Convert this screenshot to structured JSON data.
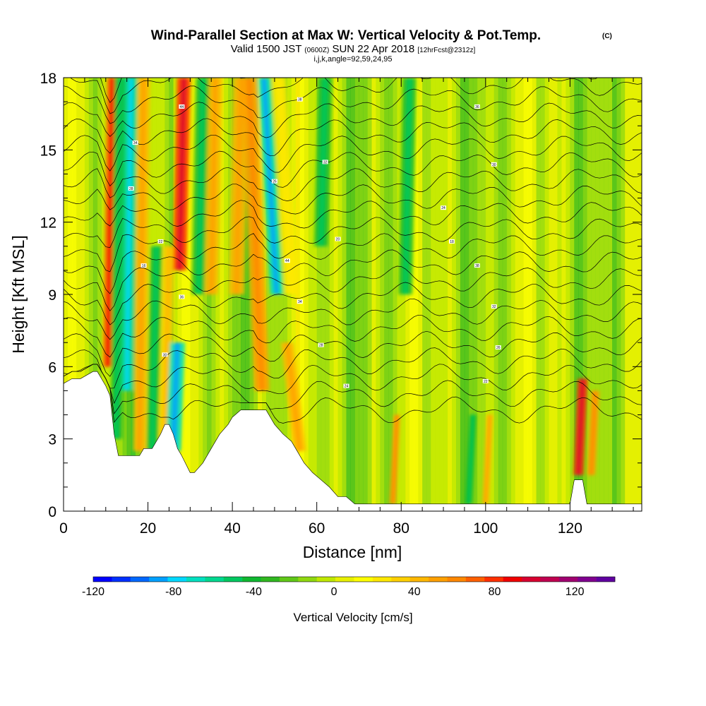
{
  "chart_data": {
    "type": "heatmap",
    "title": "Wind-Parallel Section at Max W: Vertical Velocity & Pot.Temp.",
    "title_units": "(C)",
    "subtitle_prefix": "Valid 1500 JST",
    "subtitle_z": "(0600Z)",
    "subtitle_date": "SUN 22 Apr 2018",
    "subtitle_fcst": "[12hrFcst@2312z]",
    "subtitle_line3": "i,j,k,angle=92,59,24,95",
    "xlabel": "Distance [nm]",
    "ylabel": "Height [Kft MSL]",
    "xlim": [
      0,
      137
    ],
    "ylim": [
      0,
      18
    ],
    "x_ticks": [
      0,
      20,
      40,
      60,
      80,
      100,
      120
    ],
    "x_tick_labels": [
      "0",
      "20",
      "40",
      "60",
      "80",
      "100",
      "120"
    ],
    "y_ticks": [
      0,
      3,
      6,
      9,
      12,
      15,
      18
    ],
    "y_tick_labels": [
      "0",
      "3",
      "6",
      "9",
      "12",
      "15",
      "18"
    ],
    "colorbar": {
      "label": "Vertical Velocity [cm/s]",
      "min": -120,
      "max": 140,
      "step": 10,
      "tick_values": [
        -120,
        -80,
        -40,
        0,
        40,
        80,
        120
      ],
      "tick_labels": [
        "-120",
        "-80",
        "-40",
        "0",
        "40",
        "80",
        "120"
      ],
      "colors": [
        "#0000ff",
        "#0030ff",
        "#0068ff",
        "#00a0ff",
        "#00d8ff",
        "#00e0c0",
        "#00d890",
        "#00c860",
        "#10b830",
        "#30b820",
        "#60c818",
        "#90d810",
        "#c0e800",
        "#e8f000",
        "#ffff00",
        "#ffe800",
        "#ffd000",
        "#ffb800",
        "#ffa000",
        "#ff8800",
        "#ff6000",
        "#ff3000",
        "#f00000",
        "#d80030",
        "#c00050",
        "#a00070",
        "#800090",
        "#6000a0"
      ]
    },
    "terrain": {
      "x": [
        0,
        2,
        4,
        7,
        8,
        10,
        11,
        12,
        13,
        14,
        16,
        18,
        19,
        21,
        22,
        23,
        24,
        25,
        26,
        27,
        28,
        30,
        31,
        33,
        35,
        37,
        39,
        40,
        42,
        44,
        45,
        47,
        48,
        50,
        52,
        54,
        55,
        57,
        59,
        61,
        63,
        65,
        67,
        69,
        72,
        80,
        90,
        100,
        110,
        119,
        120,
        121,
        122,
        123,
        124,
        125,
        137
      ],
      "height": [
        5.3,
        5.5,
        5.5,
        5.8,
        5.8,
        5.2,
        4.8,
        3.2,
        2.3,
        2.3,
        2.3,
        2.3,
        2.6,
        2.6,
        2.9,
        3.2,
        3.6,
        3.6,
        3.2,
        2.6,
        2.3,
        1.6,
        1.6,
        2.0,
        2.6,
        3.2,
        3.6,
        3.9,
        4.2,
        4.2,
        4.2,
        4.2,
        4.2,
        3.6,
        3.2,
        2.9,
        2.6,
        2.0,
        1.6,
        1.3,
        1.0,
        0.6,
        0.6,
        0.3,
        0.3,
        0.3,
        0.3,
        0.3,
        0.3,
        0.3,
        0.3,
        1.3,
        1.3,
        1.3,
        0.3,
        0.3,
        0.3
      ]
    },
    "vertical_velocity_cells": {
      "background_value": 0,
      "features": [
        {
          "x": 10.5,
          "z_from": 6,
          "z_to": 18,
          "value": 80,
          "width": 1.2
        },
        {
          "x": 12.5,
          "z_from": 3,
          "z_to": 18,
          "value": -40,
          "width": 1.4
        },
        {
          "x": 15,
          "z_from": 5,
          "z_to": 18,
          "value": -60,
          "width": 1.5
        },
        {
          "x": 18,
          "z_from": 2.5,
          "z_to": 18,
          "value": 50,
          "width": 1.5
        },
        {
          "x": 21,
          "z_from": 2.5,
          "z_to": 11,
          "value": -40,
          "width": 1.4
        },
        {
          "x": 24,
          "z_from": 3,
          "z_to": 11,
          "value": 40,
          "width": 1.4
        },
        {
          "x": 27.5,
          "z_from": 10,
          "z_to": 18,
          "value": 90,
          "width": 1.6
        },
        {
          "x": 26,
          "z_from": 2.5,
          "z_to": 7,
          "value": -70,
          "width": 1.8
        },
        {
          "x": 32,
          "z_from": 9,
          "z_to": 18,
          "value": -40,
          "width": 1.6
        },
        {
          "x": 35,
          "z_from": 9,
          "z_to": 18,
          "value": 50,
          "width": 1.6
        },
        {
          "x": 41,
          "z_from": 9,
          "z_to": 18,
          "value": 50,
          "width": 1.8
        },
        {
          "x": 47,
          "z_from": 5,
          "z_to": 18,
          "value": 60,
          "width": 1.8
        },
        {
          "x": 50.5,
          "z_from": 9,
          "z_to": 18,
          "value": -70,
          "width": 1.5
        },
        {
          "x": 54,
          "z_from": 9,
          "z_to": 18,
          "value": 30,
          "width": 1.6
        },
        {
          "x": 56,
          "z_from": 2.5,
          "z_to": 7,
          "value": 50,
          "width": 1.5
        },
        {
          "x": 61,
          "z_from": 11,
          "z_to": 18,
          "value": -40,
          "width": 1.6
        },
        {
          "x": 78,
          "z_from": 0.3,
          "z_to": 4,
          "value": 60,
          "width": 0.8
        },
        {
          "x": 81,
          "z_from": 9,
          "z_to": 18,
          "value": -40,
          "width": 1.6
        },
        {
          "x": 96,
          "z_from": 0.3,
          "z_to": 4,
          "value": -40,
          "width": 0.8
        },
        {
          "x": 100,
          "z_from": 0.3,
          "z_to": 4,
          "value": 50,
          "width": 0.8
        },
        {
          "x": 122,
          "z_from": 1.5,
          "z_to": 5.5,
          "value": 90,
          "width": 1.2
        },
        {
          "x": 125,
          "z_from": 1.5,
          "z_to": 5,
          "value": 60,
          "width": 1.0
        }
      ]
    },
    "potential_temperature_labels": [
      "44",
      "38",
      "36",
      "34",
      "32",
      "30",
      "28",
      "26",
      "24",
      "22",
      "20",
      "18",
      "16"
    ]
  }
}
